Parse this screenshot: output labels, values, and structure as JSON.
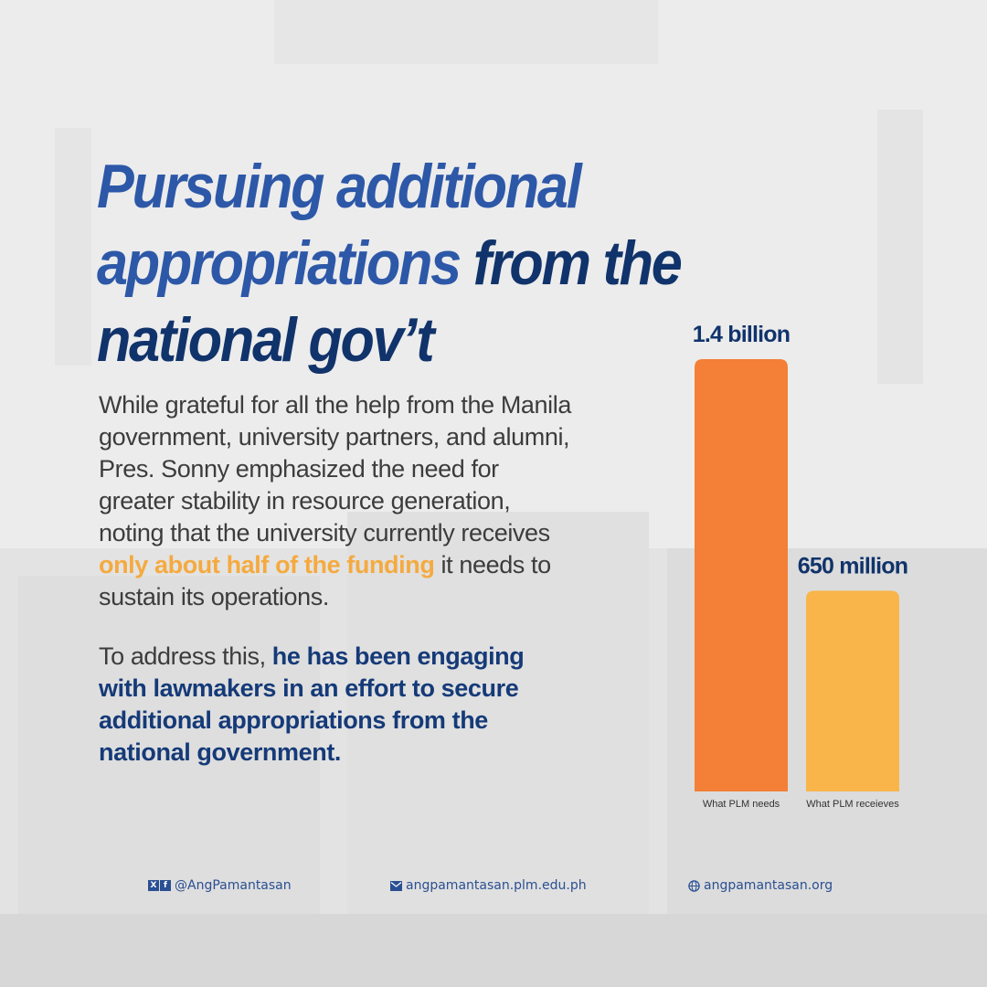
{
  "headline": {
    "line1": "Pursuing additional",
    "line2_highlight": "appropriations",
    "line2_rest": " from the",
    "line3": "national gov’t"
  },
  "body": {
    "p1_line1": "While grateful for all the help from the Manila",
    "p1_line2": "government, university partners, and alumni,",
    "p1_line3": "Pres. Sonny emphasized the need for",
    "p1_line4": "greater stability in resource generation,",
    "p1_line5": "noting that the university currently receives",
    "p1_line6_highlight": "only about half of the funding",
    "p1_line6_rest": " it needs to",
    "p1_line7": "sustain its operations.",
    "p2_line1_lead": "To address this, ",
    "p2_line1_highlight": "he has been engaging",
    "p2_line2": "with lawmakers in an effort to secure",
    "p2_line3": "additional appropriations from the",
    "p2_line4": "national government."
  },
  "chart_data": {
    "type": "bar",
    "categories": [
      "What PLM needs",
      "What PLM receieves"
    ],
    "values": [
      1400,
      650
    ],
    "value_labels": [
      "1.4 billion",
      "650 million"
    ],
    "unit": "million",
    "ylim": [
      0,
      1400
    ],
    "colors": [
      "#f47f36",
      "#f9b54a"
    ],
    "grid": false,
    "legend": "none"
  },
  "footer": {
    "social_icon_x": "x-icon",
    "social_icon_fb": "facebook-icon",
    "social_handle": "@AngPamantasan",
    "email_icon": "mail-icon",
    "email": "angpamantasan.plm.edu.ph",
    "web_icon": "globe-icon",
    "website": "angpamantasan.org"
  },
  "colors": {
    "title_light": "#2d58a8",
    "title_dark": "#11336b",
    "highlight_orange": "#f5aa3f",
    "highlight_blue": "#153a78",
    "body_text": "#3c3c3c",
    "background": "#ececec"
  }
}
